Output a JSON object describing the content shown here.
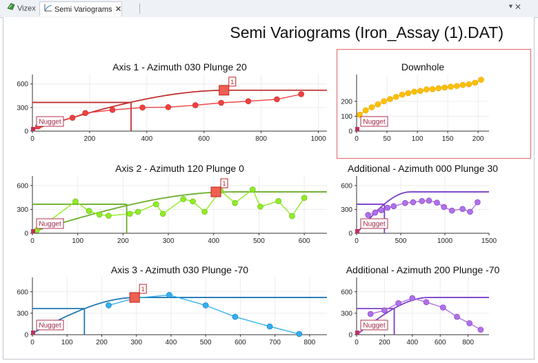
{
  "tabs": [
    {
      "label": "Vizex",
      "icon": "vizex-icon",
      "active": false
    },
    {
      "label": "Semi Variograms",
      "icon": "variogram-icon",
      "active": true
    }
  ],
  "page_title": "Semi Variograms (Iron_Assay (1).DAT)",
  "nugget_label": "Nugget",
  "chart_data": [
    {
      "type": "line",
      "title": "Axis 1 - Azimuth 030 Plunge 20",
      "xlim": [
        0,
        1030
      ],
      "ylim": [
        0,
        720
      ],
      "xticks": [
        0,
        200,
        400,
        600,
        800,
        1000
      ],
      "yticks": [
        0,
        300,
        600
      ],
      "color": "#c0312f",
      "point_color": "#f04040",
      "points": [
        [
          20,
          60
        ],
        [
          140,
          170
        ],
        [
          185,
          230
        ],
        [
          280,
          270
        ],
        [
          385,
          300
        ],
        [
          475,
          305
        ],
        [
          570,
          330
        ],
        [
          660,
          360
        ],
        [
          755,
          380
        ],
        [
          855,
          405
        ],
        [
          940,
          470
        ]
      ],
      "model": {
        "nugget": 20,
        "sill": 520,
        "range": 680
      },
      "range_marker": {
        "x": 345,
        "y": 365
      },
      "handle": {
        "x": 670,
        "y": 520,
        "label": "1"
      }
    },
    {
      "type": "line",
      "title": "Downhole",
      "xlim": [
        0,
        218
      ],
      "ylim": [
        0,
        380
      ],
      "xticks": [
        0,
        50,
        100,
        150,
        200
      ],
      "yticks": [
        0,
        100,
        200
      ],
      "color": "#e0a000",
      "point_color": "#ffc000",
      "points": [
        [
          5,
          110
        ],
        [
          15,
          140
        ],
        [
          25,
          160
        ],
        [
          35,
          180
        ],
        [
          45,
          200
        ],
        [
          55,
          215
        ],
        [
          65,
          230
        ],
        [
          75,
          245
        ],
        [
          85,
          255
        ],
        [
          95,
          265
        ],
        [
          105,
          270
        ],
        [
          115,
          280
        ],
        [
          125,
          282
        ],
        [
          135,
          288
        ],
        [
          145,
          293
        ],
        [
          155,
          298
        ],
        [
          165,
          303
        ],
        [
          175,
          310
        ],
        [
          185,
          315
        ],
        [
          195,
          325
        ],
        [
          205,
          345
        ]
      ]
    },
    {
      "type": "line",
      "title": "Axis 2 - Azimuth 120 Plunge 0",
      "xlim": [
        0,
        650
      ],
      "ylim": [
        0,
        720
      ],
      "xticks": [
        0,
        100,
        200,
        300,
        400,
        500,
        600
      ],
      "yticks": [
        0,
        300,
        600
      ],
      "color": "#6cae2a",
      "point_color": "#90ee20",
      "points": [
        [
          10,
          40
        ],
        [
          95,
          400
        ],
        [
          125,
          280
        ],
        [
          148,
          235
        ],
        [
          168,
          220
        ],
        [
          215,
          245
        ],
        [
          233,
          270
        ],
        [
          273,
          365
        ],
        [
          288,
          245
        ],
        [
          333,
          430
        ],
        [
          354,
          400
        ],
        [
          380,
          270
        ],
        [
          415,
          535
        ],
        [
          447,
          380
        ],
        [
          486,
          550
        ],
        [
          503,
          335
        ],
        [
          543,
          405
        ],
        [
          573,
          215
        ],
        [
          600,
          445
        ]
      ],
      "model": {
        "nugget": 20,
        "sill": 520,
        "range": 440
      },
      "range_marker": {
        "x": 208,
        "y": 365
      },
      "handle": {
        "x": 405,
        "y": 520,
        "label": "1"
      }
    },
    {
      "type": "line",
      "title": "Additional - Azimuth 000 Plunge 30",
      "xlim": [
        0,
        1500
      ],
      "ylim": [
        0,
        720
      ],
      "xticks": [
        0,
        500,
        1000,
        1500
      ],
      "yticks": [
        0,
        300,
        600
      ],
      "color": "#7b3ec8",
      "point_color": "#b070e8",
      "points": [
        [
          130,
          230
        ],
        [
          210,
          260
        ],
        [
          280,
          290
        ],
        [
          350,
          320
        ],
        [
          420,
          340
        ],
        [
          550,
          380
        ],
        [
          640,
          390
        ],
        [
          740,
          405
        ],
        [
          820,
          410
        ],
        [
          910,
          385
        ],
        [
          990,
          330
        ],
        [
          1080,
          285
        ],
        [
          1200,
          305
        ],
        [
          1285,
          270
        ],
        [
          1370,
          390
        ]
      ],
      "model": {
        "nugget": 0,
        "sill": 520,
        "range": 610
      },
      "range_marker": {
        "x": 315,
        "y": 365
      }
    },
    {
      "type": "line",
      "title": "Axis 3 - Azimuth 030 Plunge -70",
      "xlim": [
        0,
        850
      ],
      "ylim": [
        0,
        800
      ],
      "xticks": [
        0,
        100,
        200,
        300,
        400,
        500,
        600,
        700,
        800
      ],
      "yticks": [
        0,
        300,
        600
      ],
      "color": "#1f77b4",
      "point_color": "#30b0f0",
      "points": [
        [
          220,
          410
        ],
        [
          295,
          510
        ],
        [
          395,
          555
        ],
        [
          500,
          410
        ],
        [
          585,
          250
        ],
        [
          685,
          115
        ],
        [
          770,
          10
        ]
      ],
      "model": {
        "nugget": 20,
        "sill": 520,
        "range": 300
      },
      "range_marker": {
        "x": 150,
        "y": 365
      },
      "handle": {
        "x": 295,
        "y": 520,
        "label": "1"
      }
    },
    {
      "type": "line",
      "title": "Additional - Azimuth 200 Plunge -70",
      "xlim": [
        0,
        950
      ],
      "ylim": [
        0,
        800
      ],
      "xticks": [
        0,
        200,
        400,
        600,
        800
      ],
      "yticks": [
        0,
        300,
        600
      ],
      "color": "#7b3ec8",
      "point_color": "#b070e8",
      "points": [
        [
          100,
          290
        ],
        [
          200,
          340
        ],
        [
          300,
          440
        ],
        [
          400,
          510
        ],
        [
          500,
          455
        ],
        [
          620,
          380
        ],
        [
          720,
          250
        ],
        [
          810,
          160
        ],
        [
          890,
          70
        ]
      ],
      "model": {
        "nugget": 0,
        "sill": 520,
        "range": 520
      },
      "range_marker": {
        "x": 270,
        "y": 365
      }
    }
  ]
}
